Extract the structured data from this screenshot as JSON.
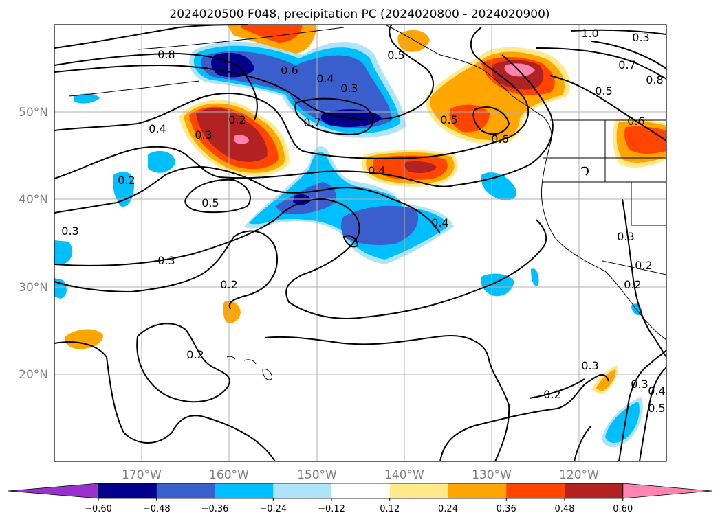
{
  "title": "2024020500 F048, precipitation PC (2024020800 - 2024020900)",
  "lon_labels": [
    "170°W",
    "160°W",
    "150°W",
    "140°W",
    "130°W",
    "120°W"
  ],
  "lat_labels": [
    "50°N",
    "40°N",
    "30°N",
    "20°N"
  ],
  "colorbar": {
    "ticks": [
      "−0.60",
      "−0.48",
      "−0.36",
      "−0.24",
      "−0.12",
      "0.12",
      "0.24",
      "0.36",
      "0.48",
      "0.60"
    ],
    "colors": [
      "#9932CC",
      "#00008B",
      "#3A5FCD",
      "#00BFFF",
      "#ADE4FA",
      "#FFFFFF",
      "#FFE98A",
      "#FFA500",
      "#FF4500",
      "#B22222",
      "#FF85B0"
    ]
  },
  "contour_labels": [
    "0.8",
    "0.6",
    "0.4",
    "0.3",
    "0.5",
    "0.7",
    "0.5",
    "0.6",
    "0.2",
    "0.3",
    "0.4",
    "0.5",
    "0.4",
    "0.3",
    "0.2",
    "0.3",
    "0.2",
    "0.2",
    "0.4",
    "0.3",
    "0.2",
    "0.3",
    "0.2",
    "0.3",
    "0.4",
    "0.5",
    "1.0",
    "0.7",
    "0.8",
    "0.5",
    "0.6",
    "0.3",
    "0.2"
  ]
}
